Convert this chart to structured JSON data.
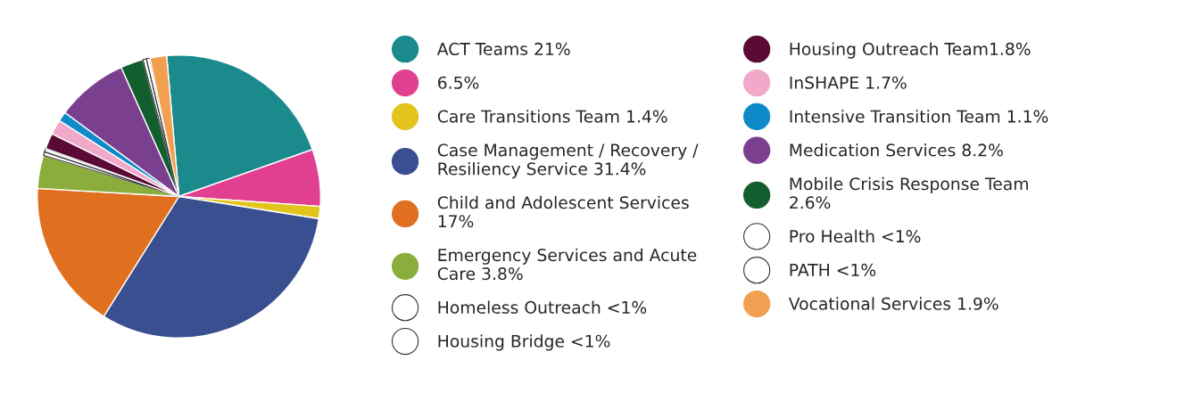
{
  "chart_data": {
    "type": "pie",
    "categories": [
      "ACT Teams 21%",
      "6.5%",
      "Care Transitions Team 1.4%",
      "Case Management / Recovery / Resiliency Service 31.4%",
      "Child and Adolescent Services 17%",
      "Emergency Services and Acute Care 3.8%",
      "Homeless Outreach <1%",
      "Housing Bridge <1%",
      "Housing Outreach Team1.8%",
      "InSHAPE 1.7%",
      "Intensive Transition Team 1.1%",
      "Medication Services 8.2%",
      "Mobile Crisis Response Team 2.6%",
      "Pro Health <1%",
      "PATH <1%",
      "Vocational Services 1.9%"
    ],
    "values": [
      21,
      6.5,
      1.4,
      31.4,
      17,
      3.8,
      0.4,
      0.4,
      1.8,
      1.7,
      1.1,
      8.2,
      2.6,
      0.4,
      0.4,
      1.9
    ],
    "colors": [
      "#1b8a8c",
      "#e0408f",
      "#e2c41c",
      "#3a4f8f",
      "#e07020",
      "#8aad3c",
      "#ffffff",
      "#ffffff",
      "#5a0a35",
      "#f0a9c8",
      "#0e8ac8",
      "#7a3f8e",
      "#135e2f",
      "#ffffff",
      "#ffffff",
      "#f0a050"
    ],
    "legend": "right"
  }
}
